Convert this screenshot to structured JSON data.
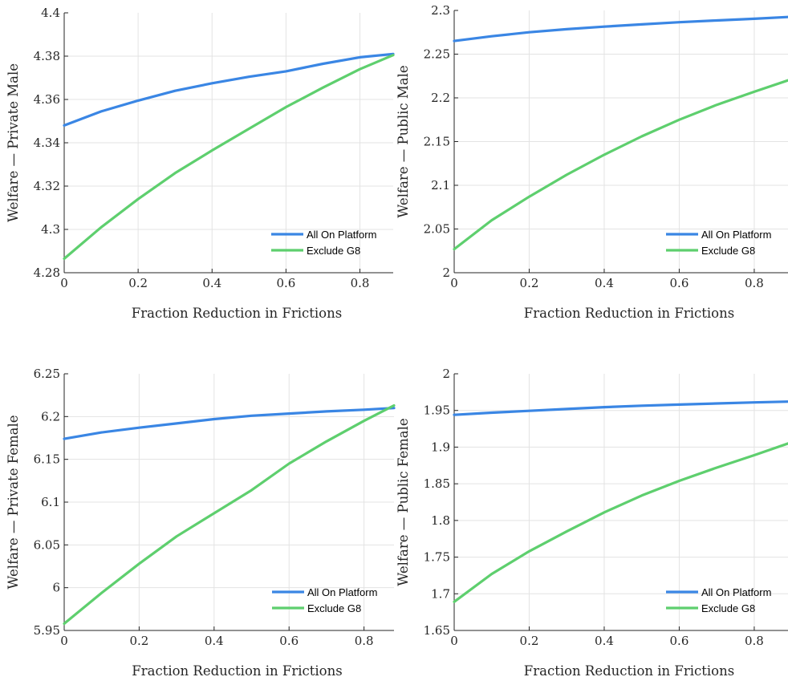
{
  "colors": {
    "all_on_platform": "#3a86e4",
    "exclude_g8": "#5ecf6e",
    "grid": "#e3e3e3",
    "axis": "#262626"
  },
  "chart_data": [
    {
      "type": "line",
      "xlabel": "Fraction Reduction in Frictions",
      "ylabel": "Welfare — Private Male",
      "xlim": [
        0,
        0.89
      ],
      "ylim": [
        4.28,
        4.4
      ],
      "xticks": [
        0,
        0.2,
        0.4,
        0.6,
        0.8
      ],
      "xtick_labels": [
        "0",
        "0.2",
        "0.4",
        "0.6",
        "0.8"
      ],
      "yticks": [
        4.28,
        4.3,
        4.32,
        4.34,
        4.36,
        4.38,
        4.4
      ],
      "ytick_labels": [
        "4.28",
        "4.3",
        "4.32",
        "4.34",
        "4.36",
        "4.38",
        "4.4"
      ],
      "grid": true,
      "legend_position": "bottom-right",
      "x": [
        0,
        0.1,
        0.2,
        0.3,
        0.4,
        0.5,
        0.6,
        0.7,
        0.8,
        0.89
      ],
      "series": [
        {
          "name": "All On Platform",
          "values": [
            4.348,
            4.3545,
            4.3595,
            4.364,
            4.3675,
            4.3705,
            4.373,
            4.3765,
            4.3795,
            4.381
          ]
        },
        {
          "name": "Exclude G8",
          "values": [
            4.2865,
            4.301,
            4.314,
            4.326,
            4.3365,
            4.3465,
            4.3565,
            4.3655,
            4.374,
            4.3805
          ]
        }
      ]
    },
    {
      "type": "line",
      "xlabel": "Fraction Reduction in Frictions",
      "ylabel": "Welfare — Public Male",
      "xlim": [
        0,
        0.89
      ],
      "ylim": [
        2,
        2.3
      ],
      "xticks": [
        0,
        0.2,
        0.4,
        0.6,
        0.8
      ],
      "xtick_labels": [
        "0",
        "0.2",
        "0.4",
        "0.6",
        "0.8"
      ],
      "yticks": [
        2,
        2.05,
        2.1,
        2.15,
        2.2,
        2.25,
        2.3
      ],
      "ytick_labels": [
        "2",
        "2.05",
        "2.1",
        "2.15",
        "2.2",
        "2.25",
        "2.3"
      ],
      "grid": true,
      "legend_position": "bottom-right",
      "x": [
        0,
        0.1,
        0.2,
        0.3,
        0.4,
        0.5,
        0.6,
        0.7,
        0.8,
        0.89
      ],
      "series": [
        {
          "name": "All On Platform",
          "values": [
            2.265,
            2.2705,
            2.275,
            2.2785,
            2.2815,
            2.284,
            2.2865,
            2.2885,
            2.2905,
            2.2925
          ]
        },
        {
          "name": "Exclude G8",
          "values": [
            2.027,
            2.06,
            2.087,
            2.112,
            2.135,
            2.156,
            2.175,
            2.192,
            2.207,
            2.22
          ]
        }
      ]
    },
    {
      "type": "line",
      "xlabel": "Fraction Reduction in Frictions",
      "ylabel": "Welfare — Private Female",
      "xlim": [
        0,
        0.88
      ],
      "ylim": [
        5.95,
        6.25
      ],
      "xticks": [
        0,
        0.2,
        0.4,
        0.6,
        0.8
      ],
      "xtick_labels": [
        "0",
        "0.2",
        "0.4",
        "0.6",
        "0.8"
      ],
      "yticks": [
        5.95,
        6,
        6.05,
        6.1,
        6.15,
        6.2,
        6.25
      ],
      "ytick_labels": [
        "5.95",
        "6",
        "6.05",
        "6.1",
        "6.15",
        "6.2",
        "6.25"
      ],
      "grid": true,
      "legend_position": "bottom-right",
      "x": [
        0,
        0.1,
        0.2,
        0.3,
        0.4,
        0.5,
        0.6,
        0.7,
        0.8,
        0.88
      ],
      "series": [
        {
          "name": "All On Platform",
          "values": [
            6.174,
            6.1815,
            6.187,
            6.192,
            6.197,
            6.201,
            6.2035,
            6.206,
            6.208,
            6.21
          ]
        },
        {
          "name": "Exclude G8",
          "values": [
            5.958,
            5.994,
            6.028,
            6.06,
            6.087,
            6.114,
            6.145,
            6.171,
            6.195,
            6.213
          ]
        }
      ]
    },
    {
      "type": "line",
      "xlabel": "Fraction Reduction in Frictions",
      "ylabel": "Welfare — Public Female",
      "xlim": [
        0,
        0.89
      ],
      "ylim": [
        1.65,
        2
      ],
      "xticks": [
        0,
        0.2,
        0.4,
        0.6,
        0.8
      ],
      "xtick_labels": [
        "0",
        "0.2",
        "0.4",
        "0.6",
        "0.8"
      ],
      "yticks": [
        1.65,
        1.7,
        1.75,
        1.8,
        1.85,
        1.9,
        1.95,
        2
      ],
      "ytick_labels": [
        "1.65",
        "1.7",
        "1.75",
        "1.8",
        "1.85",
        "1.9",
        "1.95",
        "2"
      ],
      "grid": true,
      "legend_position": "bottom-right",
      "x": [
        0,
        0.1,
        0.2,
        0.3,
        0.4,
        0.5,
        0.6,
        0.7,
        0.8,
        0.89
      ],
      "series": [
        {
          "name": "All On Platform",
          "values": [
            1.944,
            1.947,
            1.9495,
            1.952,
            1.9545,
            1.9565,
            1.958,
            1.9595,
            1.961,
            1.962
          ]
        },
        {
          "name": "Exclude G8",
          "values": [
            1.689,
            1.727,
            1.758,
            1.785,
            1.811,
            1.834,
            1.854,
            1.872,
            1.889,
            1.905
          ]
        }
      ]
    }
  ]
}
